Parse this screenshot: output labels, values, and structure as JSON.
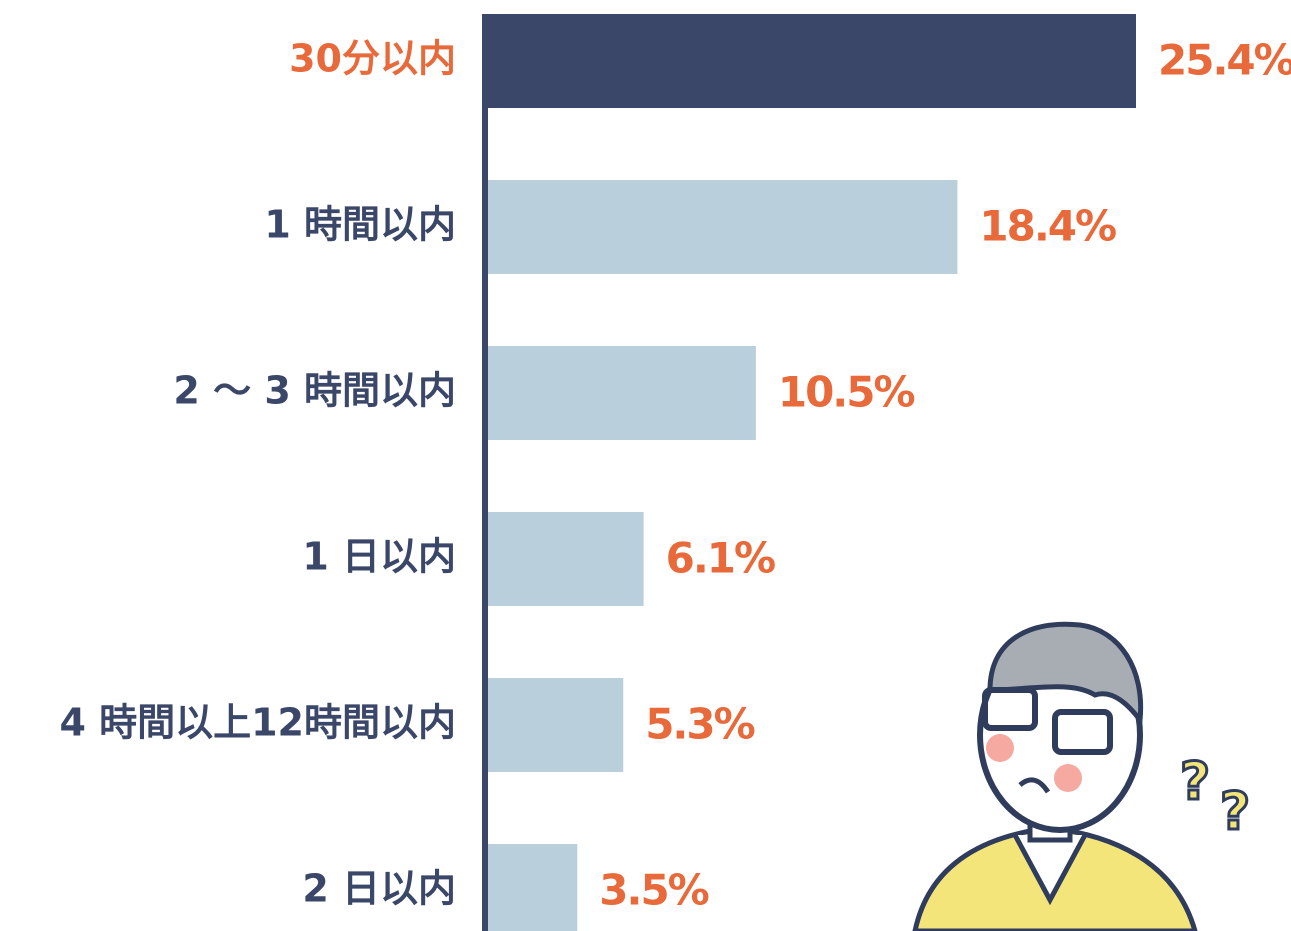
{
  "chart_data": {
    "type": "barh",
    "categories": [
      "30分以内",
      "1 時間以内",
      "2 ～ 3 時間以内",
      "1 日以内",
      "4 時間以上12時間以内",
      "2 日以内"
    ],
    "values": [
      25.4,
      18.4,
      10.5,
      6.1,
      5.3,
      3.5
    ],
    "value_labels": [
      "25.4%",
      "18.4%",
      "10.5%",
      "6.1%",
      "5.3%",
      "3.5%"
    ],
    "colors": [
      "#3b4768",
      "#b9cfdb",
      "#b9cfdb",
      "#b9cfdb",
      "#b9cfdb",
      "#b9cfdb"
    ],
    "label_colors": [
      "#e8693a",
      "#3b4768",
      "#3b4768",
      "#3b4768",
      "#3b4768",
      "#3b4768"
    ],
    "value_label_color": "#e8693a",
    "axis_color": "#3b4768"
  }
}
